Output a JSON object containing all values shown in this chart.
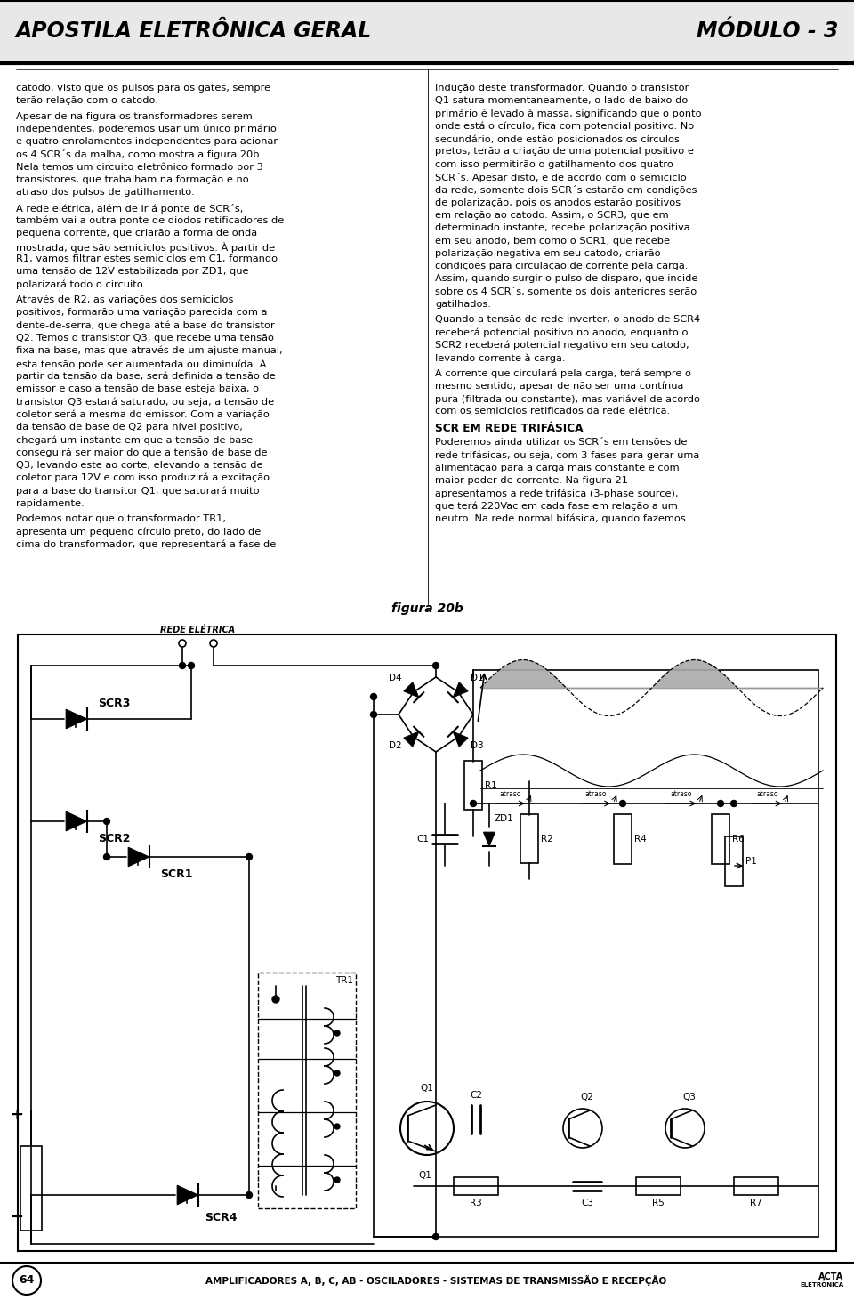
{
  "title_left": "APOSTILA ELETRÔNICA GERAL",
  "title_right": "MÓDULO - 3",
  "footer_num": "64",
  "footer_text": "AMPLIFICADORES A, B, C, AB - OSCILADORES - SISTEMAS DE TRANSMISSÃO E RECEPÇÃO",
  "col1_paragraphs": [
    "catodo, visto que os pulsos para os gates, sempre\nterão relação com o catodo.",
    "Apesar de na figura os transformadores serem\nindependentes, poderemos usar um único primário\ne quatro enrolamentos independentes para acionar\nos 4 SCR´s da malha, como mostra a figura 20b.\nNela temos um circuito eletrônico formado por 3\ntransistores, que trabalham na formação e no\natraso dos pulsos de gatilhamento.",
    "A rede elétrica, além de ir á ponte de SCR´s,\ntambém vai a outra ponte de diodos retificadores de\npequena corrente, que criarão a forma de onda\nmostrada, que são semiciclos positivos. À partir de\nR1, vamos filtrar estes semiciclos em C1, formando\numa tensão de 12V estabilizada por ZD1, que\npolarizará todo o circuito.",
    "Através de R2, as variações dos semiciclos\npositivos, formarão uma variação parecida com a\ndente-de-serra, que chega até a base do transistor\nQ2. Temos o transistor Q3, que recebe uma tensão\nfixa na base, mas que através de um ajuste manual,\nesta tensão pode ser aumentada ou diminuída. À\npartir da tensão da base, será definida a tensão de\nemissor e caso a tensão de base esteja baixa, o\ntransistor Q3 estará saturado, ou seja, a tensão de\ncoletor será a mesma do emissor. Com a variação\nda tensão de base de Q2 para nível positivo,\nchegará um instante em que a tensão de base\nconseguirá ser maior do que a tensão de base de\nQ3, levando este ao corte, elevando a tensão de\ncoletor para 12V e com isso produzirá a excitação\npara a base do transitor Q1, que saturará muito\nrapidamente.",
    "Podemos notar que o transformador TR1,\napresenta um pequeno círculo preto, do lado de\ncima do transformador, que representará a fase de"
  ],
  "col2_paragraphs": [
    "indução deste transformador. Quando o transistor\nQ1 satura momentaneamente, o lado de baixo do\nprimário é levado à massa, significando que o ponto\nonde está o círculo, fica com potencial positivo. No\nsecundário, onde estão posicionados os círculos\npretos, terão a criação de uma potencial positivo e\ncom isso permitirão o gatilhamento dos quatro\nSCR´s. Apesar disto, e de acordo com o semiciclo\nda rede, somente dois SCR´s estarão em condições\nde polarização, pois os anodos estarão positivos\nem relação ao catodo. Assim, o SCR3, que em\ndeterminado instante, recebe polarização positiva\nem seu anodo, bem como o SCR1, que recebe\npolarização negativa em seu catodo, criarão\ncondições para circulação de corrente pela carga.\nAssim, quando surgir o pulso de disparo, que incide\nsobre os 4 SCR´s, somente os dois anteriores serão\ngatilhados.",
    "Quando a tensão de rede inverter, o anodo de SCR4\nreceberá potencial positivo no anodo, enquanto o\nSCR2 receberá potencial negativo em seu catodo,\nlevando corrente à carga.",
    "A corrente que circulará pela carga, terá sempre o\nmesmo sentido, apesar de não ser uma contínua\npura (filtrada ou constante), mas variável de acordo\ncom os semiciclos retificados da rede elétrica.",
    "SCR EM REDE TRIFÁSICA",
    "Poderemos ainda utilizar os SCR´s em tensões de\nrede trifásicas, ou seja, com 3 fases para gerar uma\nalimentação para a carga mais constante e com\nmaior poder de corrente. Na figura 21\napresentamos a rede trifásica (3-phase source),\nque terá 220Vac em cada fase em relação a um\nneutro. Na rede normal bifásica, quando fazemos"
  ],
  "figure_caption": "figura 20b",
  "bg_color": "#ffffff",
  "text_color": "#000000"
}
